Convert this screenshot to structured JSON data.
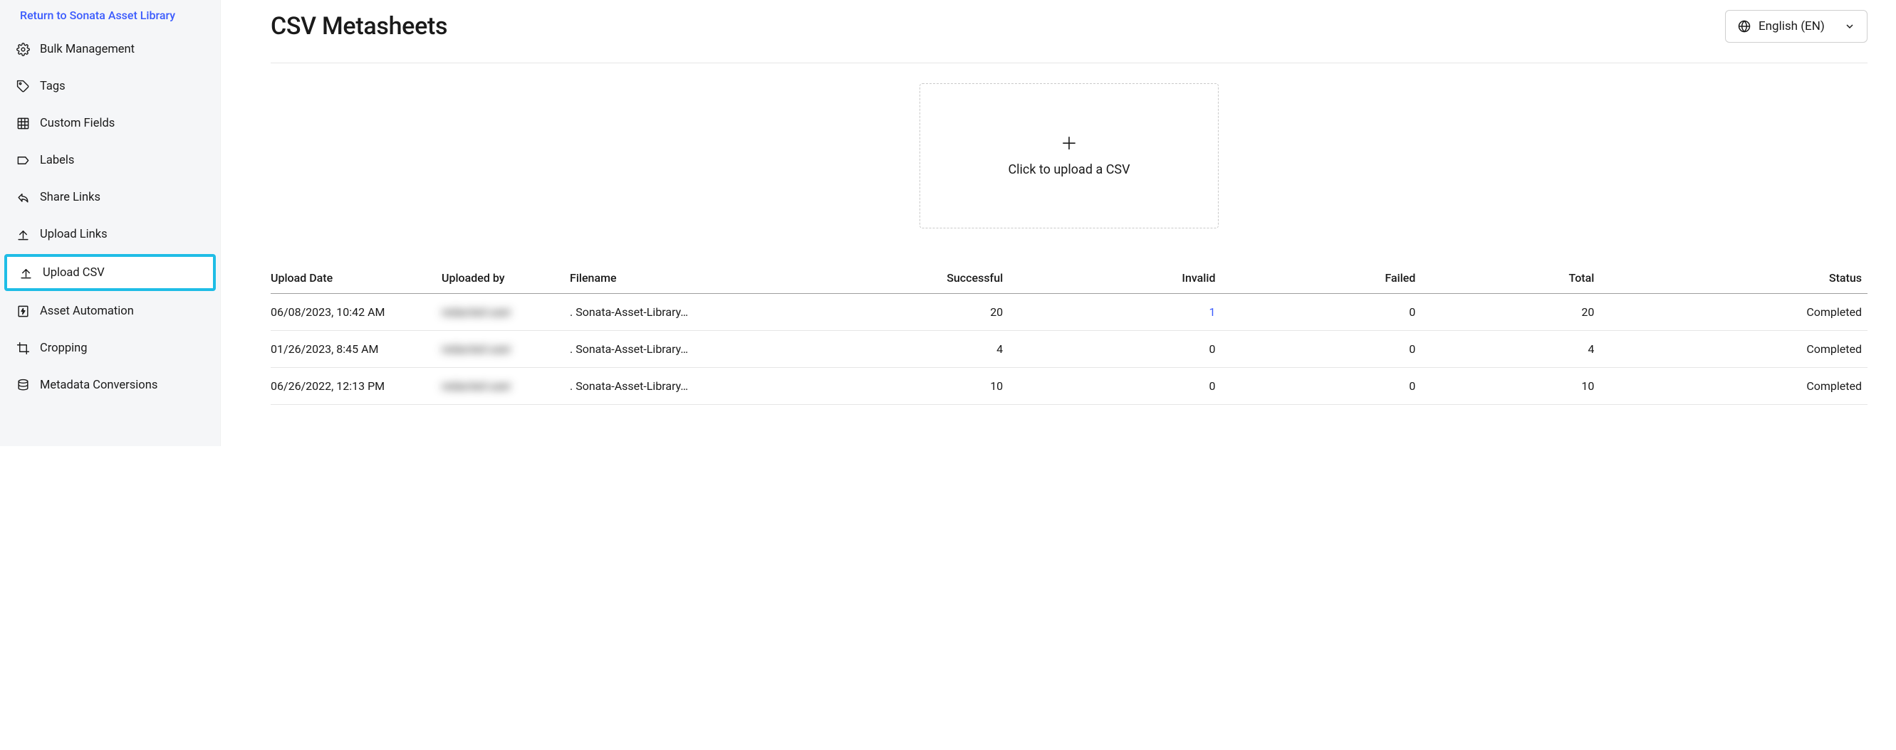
{
  "sidebar": {
    "return_label": "Return to Sonata Asset Library",
    "items": [
      {
        "icon": "gear",
        "label": "Bulk Management",
        "active": false
      },
      {
        "icon": "tag",
        "label": "Tags",
        "active": false
      },
      {
        "icon": "grid",
        "label": "Custom Fields",
        "active": false
      },
      {
        "icon": "label",
        "label": "Labels",
        "active": false
      },
      {
        "icon": "share",
        "label": "Share Links",
        "active": false
      },
      {
        "icon": "upload",
        "label": "Upload Links",
        "active": false
      },
      {
        "icon": "upload",
        "label": "Upload CSV",
        "active": true
      },
      {
        "icon": "bolt-doc",
        "label": "Asset Automation",
        "active": false
      },
      {
        "icon": "crop",
        "label": "Cropping",
        "active": false
      },
      {
        "icon": "database",
        "label": "Metadata Conversions",
        "active": false
      }
    ]
  },
  "header": {
    "title": "CSV Metasheets",
    "language_label": "English (EN)"
  },
  "upload_zone": {
    "label": "Click to upload a CSV"
  },
  "table": {
    "columns": {
      "upload_date": "Upload Date",
      "uploaded_by": "Uploaded by",
      "filename": "Filename",
      "successful": "Successful",
      "invalid": "Invalid",
      "failed": "Failed",
      "total": "Total",
      "status": "Status"
    },
    "rows": [
      {
        "upload_date": "06/08/2023, 10:42 AM",
        "uploaded_by": "redacted user",
        "filename": ". Sonata-Asset-Library…",
        "successful": "20",
        "invalid": "1",
        "invalid_is_link": true,
        "failed": "0",
        "total": "20",
        "status": "Completed"
      },
      {
        "upload_date": "01/26/2023, 8:45 AM",
        "uploaded_by": "redacted user",
        "filename": ". Sonata-Asset-Library…",
        "successful": "4",
        "invalid": "0",
        "invalid_is_link": false,
        "failed": "0",
        "total": "4",
        "status": "Completed"
      },
      {
        "upload_date": "06/26/2022, 12:13 PM",
        "uploaded_by": "redacted user",
        "filename": ". Sonata-Asset-Library…",
        "successful": "10",
        "invalid": "0",
        "invalid_is_link": false,
        "failed": "0",
        "total": "10",
        "status": "Completed"
      }
    ]
  },
  "colors": {
    "sidebar_bg": "#f5f6f8",
    "link_blue": "#3b5bfd",
    "active_border": "#1fbde6",
    "text": "#1a1a1a",
    "border_light": "#e6e6e6",
    "border_dash": "#c9c9c9",
    "header_underline": "#9e9e9e"
  }
}
